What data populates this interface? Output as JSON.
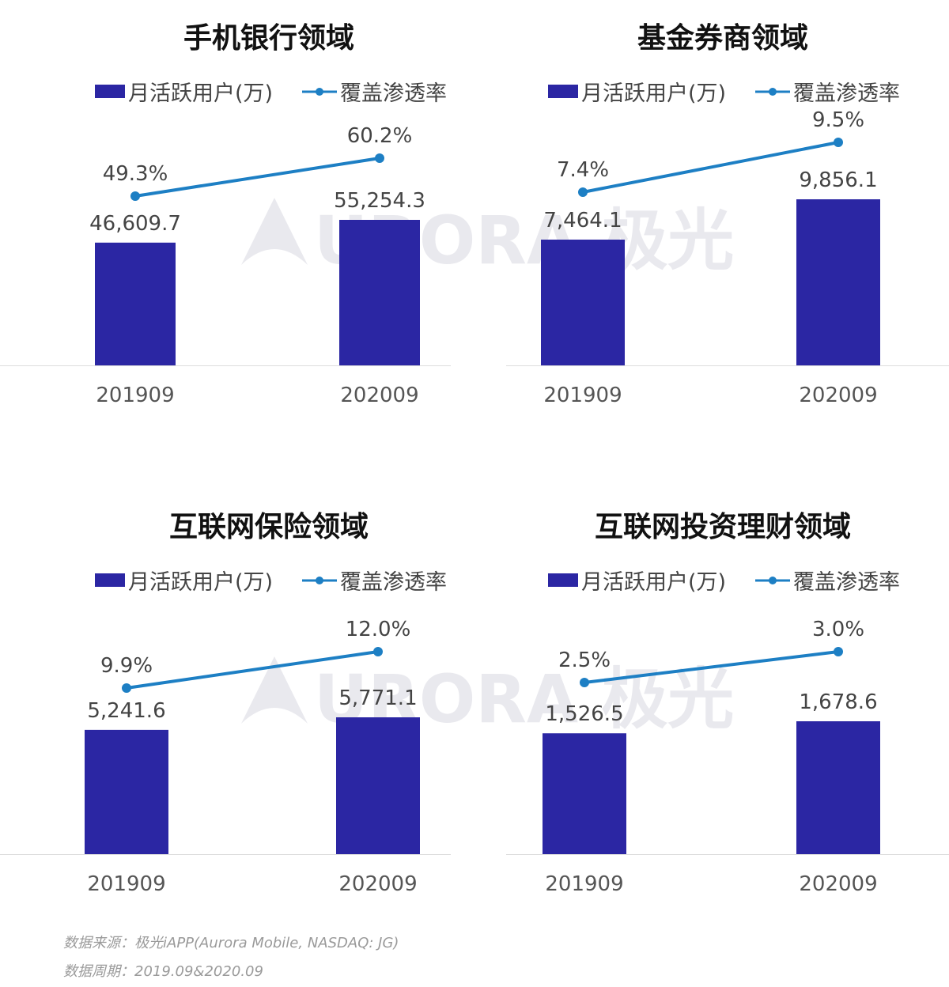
{
  "colors": {
    "bar": "#2b26a3",
    "line": "#1d7fc4",
    "title": "#111111",
    "label": "#444444",
    "tick": "#555555",
    "axis": "#dddddd",
    "watermark": "#e9e9ee"
  },
  "legend": {
    "bar_label": "月活跃用户(万)",
    "line_label": "覆盖渗透率"
  },
  "watermark": {
    "text": "URORA 极光"
  },
  "chart_data": [
    {
      "type": "bar",
      "title": "手机银行领域",
      "categories": [
        "201909",
        "202009"
      ],
      "series": [
        {
          "name": "月活跃用户(万)",
          "type": "bar",
          "values": [
            46609.7,
            55254.3
          ],
          "labels": [
            "46,609.7",
            "55,254.3"
          ]
        },
        {
          "name": "覆盖渗透率",
          "type": "line",
          "values": [
            49.3,
            60.2
          ],
          "labels": [
            "49.3%",
            "60.2%"
          ]
        }
      ]
    },
    {
      "type": "bar",
      "title": "基金券商领域",
      "categories": [
        "201909",
        "202009"
      ],
      "series": [
        {
          "name": "月活跃用户(万)",
          "type": "bar",
          "values": [
            7464.1,
            9856.1
          ],
          "labels": [
            "7,464.1",
            "9,856.1"
          ]
        },
        {
          "name": "覆盖渗透率",
          "type": "line",
          "values": [
            7.4,
            9.5
          ],
          "labels": [
            "7.4%",
            "9.5%"
          ]
        }
      ]
    },
    {
      "type": "bar",
      "title": "互联网保险领域",
      "categories": [
        "201909",
        "202009"
      ],
      "series": [
        {
          "name": "月活跃用户(万)",
          "type": "bar",
          "values": [
            5241.6,
            5771.1
          ],
          "labels": [
            "5,241.6",
            "5,771.1"
          ]
        },
        {
          "name": "覆盖渗透率",
          "type": "line",
          "values": [
            9.9,
            12.0
          ],
          "labels": [
            "9.9%",
            "12.0%"
          ]
        }
      ]
    },
    {
      "type": "bar",
      "title": "互联网投资理财领域",
      "categories": [
        "201909",
        "202009"
      ],
      "series": [
        {
          "name": "月活跃用户(万)",
          "type": "bar",
          "values": [
            1526.5,
            1678.6
          ],
          "labels": [
            "1,526.5",
            "1,678.6"
          ]
        },
        {
          "name": "覆盖渗透率",
          "type": "line",
          "values": [
            2.5,
            3.0
          ],
          "labels": [
            "2.5%",
            "3.0%"
          ]
        }
      ]
    }
  ],
  "footer": {
    "source": "数据来源：极光iAPP(Aurora Mobile, NASDAQ: JG)",
    "period": "数据周期：2019.09&2020.09"
  }
}
